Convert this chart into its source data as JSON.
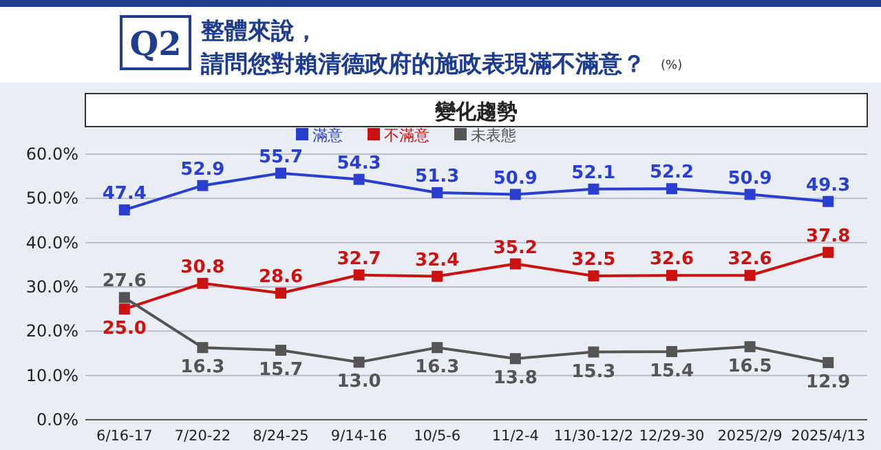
{
  "chart_data": {
    "type": "line",
    "title": "整體來說，請問您對賴清德政府的施政表現滿不滿意？",
    "subtitle": "變化趨勢",
    "annotations": [
      "Q2",
      "(%)"
    ],
    "categories": [
      "6/16-17",
      "7/20-22",
      "8/24-25",
      "9/14-16",
      "10/5-6",
      "11/2-4",
      "11/30-12/2",
      "12/29-30",
      "2025/2/9",
      "2025/4/13"
    ],
    "series": [
      {
        "name": "滿意",
        "color": "#2a3fd0",
        "values": [
          47.4,
          52.9,
          55.7,
          54.3,
          51.3,
          50.9,
          52.1,
          52.2,
          50.9,
          49.3
        ],
        "value_labels": [
          "47.4",
          "52.9",
          "55.7",
          "54.3",
          "51.3",
          "50.9",
          "52.1",
          "52.2",
          "50.9",
          "49.3"
        ]
      },
      {
        "name": "不滿意",
        "color": "#cc1111",
        "values": [
          25.0,
          30.8,
          28.6,
          32.7,
          32.4,
          35.2,
          32.5,
          32.6,
          32.6,
          37.8
        ],
        "value_labels": [
          "25.0",
          "30.8",
          "28.6",
          "32.7",
          "32.4",
          "35.2",
          "32.5",
          "32.6",
          "32.6",
          "37.8"
        ]
      },
      {
        "name": "未表態",
        "color": "#555555",
        "values": [
          27.6,
          16.3,
          15.7,
          13.0,
          16.3,
          13.8,
          15.3,
          15.4,
          16.5,
          12.9
        ],
        "value_labels": [
          "27.6",
          "16.3",
          "15.7",
          "13.0",
          "16.3",
          "13.8",
          "15.3",
          "15.4",
          "16.5",
          "12.9"
        ]
      }
    ],
    "ylim": [
      0,
      60
    ],
    "yticks": [
      {
        "value": 0,
        "label": "0.0%"
      },
      {
        "value": 10,
        "label": "10.0%"
      },
      {
        "value": 20,
        "label": "20.0%"
      },
      {
        "value": 30,
        "label": "30.0%"
      },
      {
        "value": 40,
        "label": "40.0%"
      },
      {
        "value": 50,
        "label": "50.0%"
      },
      {
        "value": 60,
        "label": "60.0%"
      }
    ],
    "grid": "y",
    "legend": "top",
    "marker": "square",
    "line_style": "solid"
  }
}
